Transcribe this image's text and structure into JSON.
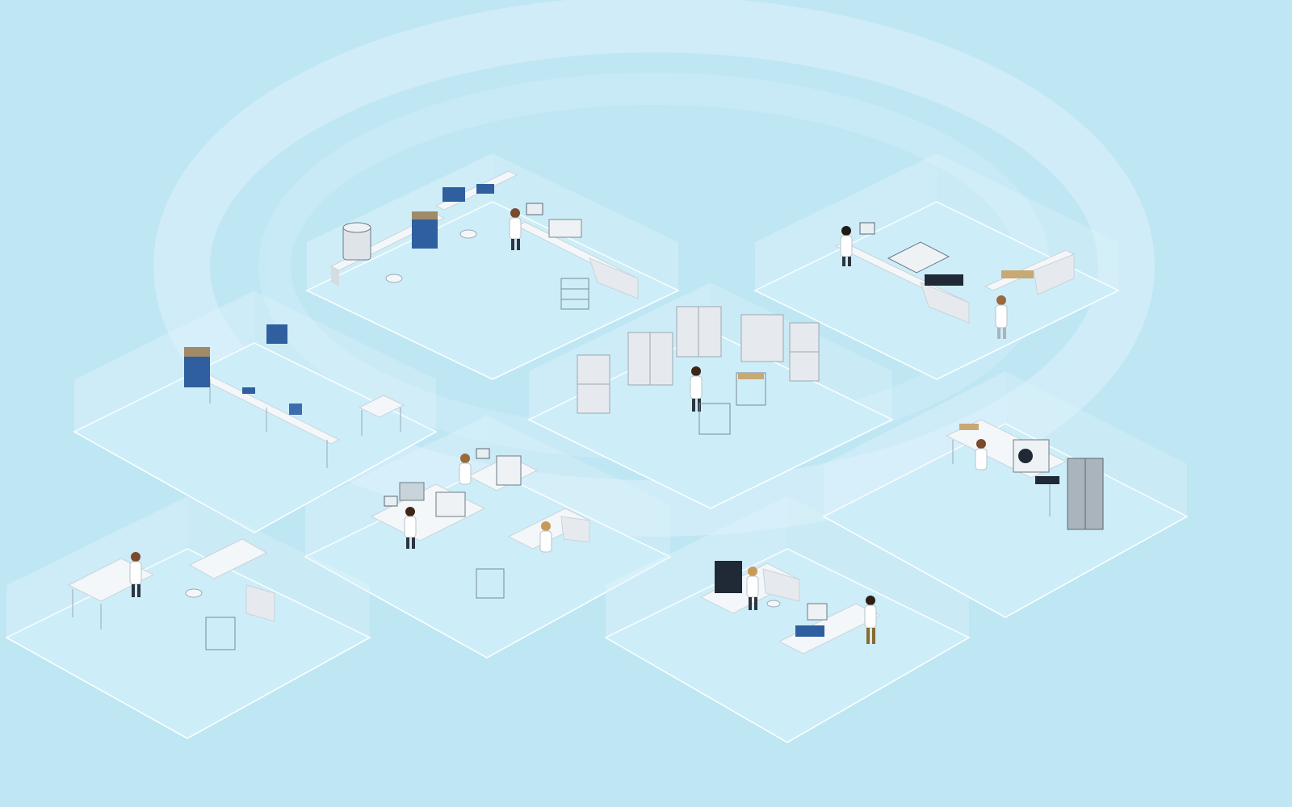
{
  "scene": {
    "colors": {
      "background": "#bfe6f3",
      "floor": "#cdeef8",
      "floor_edge": "#ffffff",
      "wall": "#e3f6fc",
      "bench": "#f4f7f9",
      "bench_side": "#d5dde3",
      "cabinet": "#e6eaee",
      "instrument_blue": "#2f5f9e",
      "instrument_dark": "#1f2a36",
      "coat": "#ffffff",
      "skin": "#7a4a2c",
      "ring": "#d9f2fb"
    },
    "zones": [
      {
        "id": "sample-prep-lab"
      },
      {
        "id": "storage-room"
      },
      {
        "id": "analysis-lab-north"
      },
      {
        "id": "weighing-lab"
      },
      {
        "id": "instrument-lab-center"
      },
      {
        "id": "workbench-lab-south-west"
      },
      {
        "id": "chemistry-lab-south"
      },
      {
        "id": "freezer-lab-east"
      }
    ]
  }
}
